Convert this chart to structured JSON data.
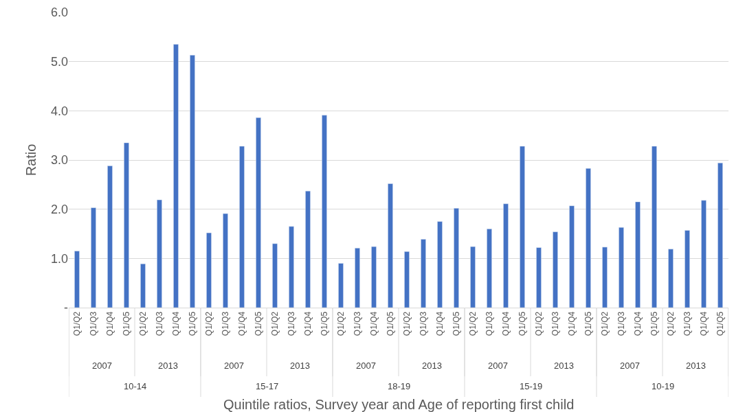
{
  "chart_data": {
    "type": "bar",
    "xlabel": "Quintile ratios, Survey year and Age of reporting first child",
    "ylabel": "Ratio",
    "categories": [
      "Q1/Q2",
      "Q1/Q3",
      "Q1/Q4",
      "Q1/Q5",
      "Q1/Q2",
      "Q1/Q3",
      "Q1/Q4",
      "Q1/Q5",
      "Q1/Q2",
      "Q1/Q3",
      "Q1/Q4",
      "Q1/Q5",
      "Q1/Q2",
      "Q1/Q3",
      "Q1/Q4",
      "Q1/Q5",
      "Q1/Q2",
      "Q1/Q3",
      "Q1/Q4",
      "Q1/Q5",
      "Q1/Q2",
      "Q1/Q3",
      "Q1/Q4",
      "Q1/Q5",
      "Q1/Q2",
      "Q1/Q3",
      "Q1/Q4",
      "Q1/Q5",
      "Q1/Q2",
      "Q1/Q3",
      "Q1/Q4",
      "Q1/Q5",
      "Q1/Q2",
      "Q1/Q3",
      "Q1/Q4",
      "Q1/Q5",
      "Q1/Q2",
      "Q1/Q3",
      "Q1/Q4",
      "Q1/Q5"
    ],
    "values": [
      1.15,
      2.03,
      2.88,
      3.35,
      0.89,
      2.19,
      5.35,
      5.13,
      1.52,
      1.91,
      3.28,
      3.86,
      1.3,
      1.65,
      2.37,
      3.91,
      0.9,
      1.21,
      1.24,
      2.52,
      1.14,
      1.39,
      1.75,
      2.02,
      1.24,
      1.6,
      2.11,
      3.28,
      1.22,
      1.54,
      2.07,
      2.83,
      1.23,
      1.63,
      2.15,
      3.28,
      1.19,
      1.57,
      2.18,
      2.94
    ],
    "color": "#4472c4",
    "ylim": [
      0,
      6
    ],
    "yticks": [
      {
        "value": 0,
        "label": "-"
      },
      {
        "value": 1,
        "label": "1.0"
      },
      {
        "value": 2,
        "label": "2.0"
      },
      {
        "value": 3,
        "label": "3.0"
      },
      {
        "value": 4,
        "label": "4.0"
      },
      {
        "value": 5,
        "label": "5.0"
      },
      {
        "value": 6,
        "label": "6.0"
      }
    ],
    "grid": "y",
    "annotations": [
      "2007",
      "2013",
      "2007",
      "2013",
      "2007",
      "2013",
      "2007",
      "2013",
      "2007",
      "2013",
      "10-14",
      "15-17",
      "18-19",
      "15-19",
      "10-19"
    ]
  }
}
